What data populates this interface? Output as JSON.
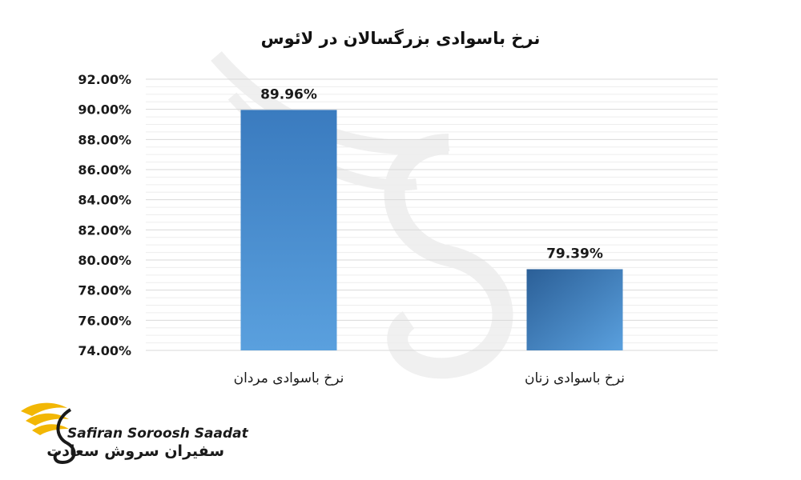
{
  "chart_data": {
    "type": "bar",
    "title": "نرخ باسوادی بزرگسالان در لائوس",
    "categories": [
      "نرخ باسوادی مردان",
      "نرخ باسوادی زنان"
    ],
    "values": [
      89.96,
      79.39
    ],
    "data_labels": [
      "89.96%",
      "79.39%"
    ],
    "ylim": [
      74,
      92
    ],
    "yticks": [
      74,
      76,
      78,
      80,
      82,
      84,
      86,
      88,
      90,
      92
    ],
    "ytick_labels": [
      "74.00%",
      "76.00%",
      "78.00%",
      "80.00%",
      "82.00%",
      "84.00%",
      "86.00%",
      "88.00%",
      "90.00%",
      "92.00%"
    ],
    "grid": true,
    "legend": "none",
    "bar_color": "#4a8fd0",
    "bar_color_dark": "#2f6aa6",
    "xlabel": "",
    "ylabel": ""
  },
  "brand": {
    "name_en": "Safiran Soroosh Saadat",
    "name_fa": "سفیران سروش سعادت",
    "accent": "#f2b705"
  }
}
